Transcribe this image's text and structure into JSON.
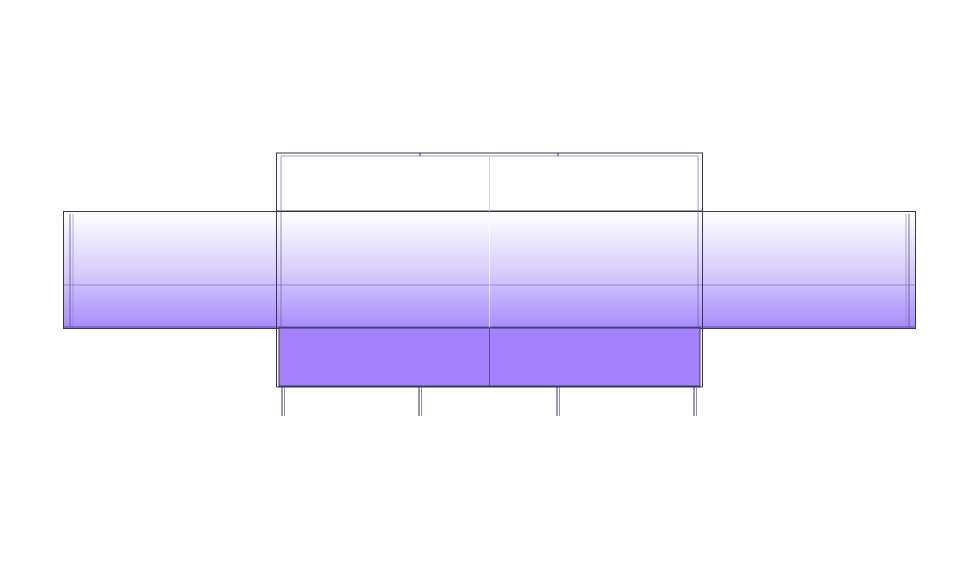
{
  "drawing": {
    "subject": "furniture-elevation",
    "colors": {
      "background": "#ffffff",
      "outline": "#3a3550",
      "fill_light": "#ffffff",
      "fill_mid": "#d8cffc",
      "fill_dark": "#a68cff",
      "fill_solid": "#a482ff",
      "seam": "#6f5fb0"
    }
  }
}
